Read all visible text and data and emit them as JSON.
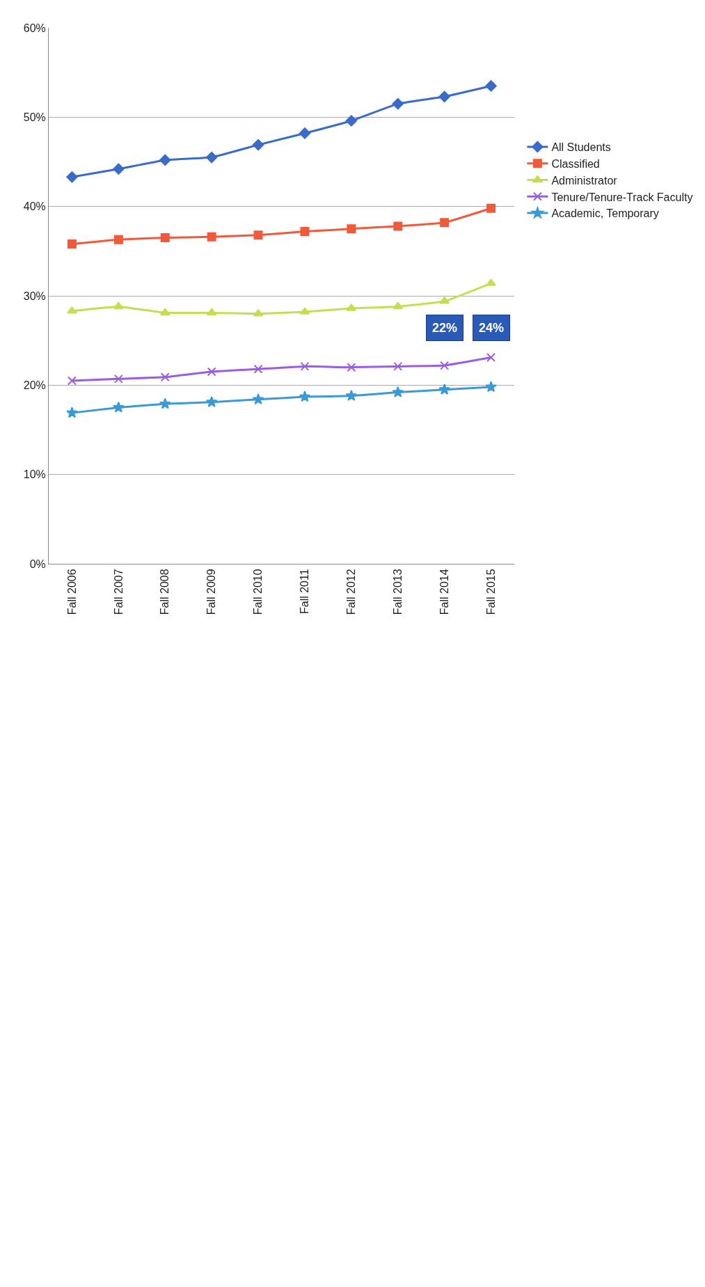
{
  "chart_data": {
    "type": "line",
    "categories": [
      "Fall 2006",
      "Fall 2007",
      "Fall 2008",
      "Fall 2009",
      "Fall 2010",
      "Fall 2011",
      "Fall 2012",
      "Fall 2013",
      "Fall 2014",
      "Fall 2015"
    ],
    "series": [
      {
        "name": "All Students",
        "color": "#3a6bc8",
        "marker": "diamond",
        "values": [
          43.3,
          44.2,
          45.2,
          45.5,
          46.9,
          48.2,
          49.6,
          51.5,
          52.3,
          53.5
        ]
      },
      {
        "name": "Classified",
        "color": "#f05a3c",
        "marker": "square",
        "values": [
          35.8,
          36.3,
          36.5,
          36.6,
          36.8,
          37.2,
          37.5,
          37.8,
          38.2,
          39.8
        ]
      },
      {
        "name": "Administrator",
        "color": "#c8dc50",
        "marker": "triangle",
        "values": [
          28.3,
          28.8,
          28.1,
          28.1,
          28.0,
          28.2,
          28.6,
          28.8,
          29.4,
          31.4
        ]
      },
      {
        "name": "Tenure/Tenure-Track Faculty",
        "color": "#9a5ce0",
        "marker": "cross",
        "values": [
          20.5,
          20.7,
          20.9,
          21.5,
          21.8,
          22.1,
          22.0,
          22.1,
          22.2,
          23.1
        ]
      },
      {
        "name": "Academic, Temporary",
        "color": "#3a9ad8",
        "marker": "star",
        "values": [
          16.9,
          17.5,
          17.9,
          18.1,
          18.4,
          18.7,
          18.8,
          19.2,
          19.5,
          19.8
        ]
      }
    ],
    "ylim": [
      0,
      60
    ],
    "yticks": [
      {
        "value": 0,
        "label": "0%"
      },
      {
        "value": 10,
        "label": "10%"
      },
      {
        "value": 20,
        "label": "20%"
      },
      {
        "value": 30,
        "label": "30%"
      },
      {
        "value": 40,
        "label": "40%"
      },
      {
        "value": 50,
        "label": "50%"
      },
      {
        "value": 60,
        "label": "60%"
      }
    ],
    "grid": "y",
    "legend": "right",
    "annotations": [
      "22%",
      "24%"
    ]
  }
}
